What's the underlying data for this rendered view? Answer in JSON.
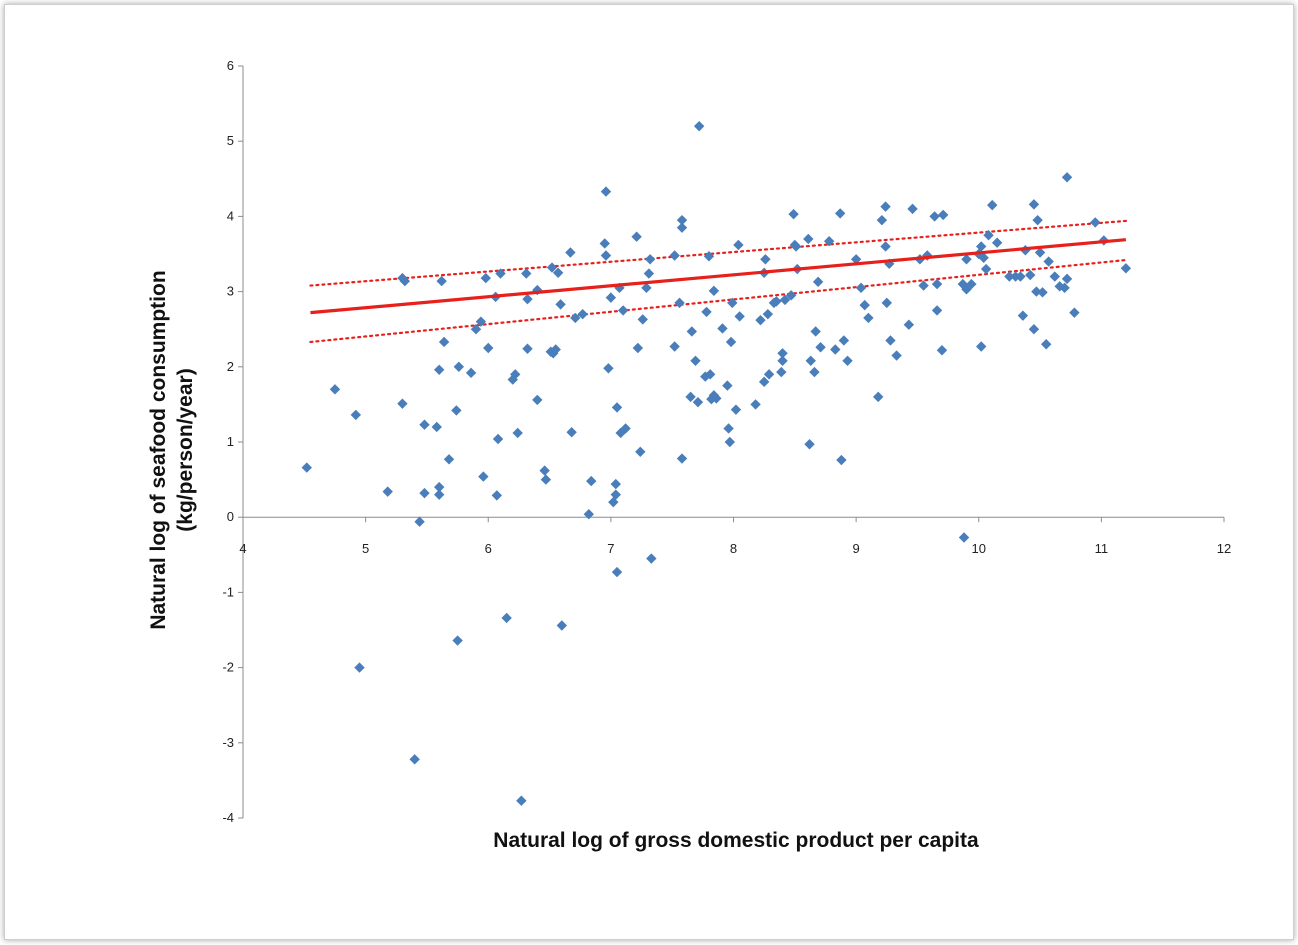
{
  "chart_data": {
    "type": "scatter",
    "xlabel": "Natural log of gross domestic product per capita",
    "ylabel_line1": "Natural log of  seafood consumption",
    "ylabel_line2": "(kg/person/year)",
    "xlim": [
      4,
      12
    ],
    "ylim": [
      -4,
      6
    ],
    "x_ticks": [
      4,
      5,
      6,
      7,
      8,
      9,
      10,
      11,
      12
    ],
    "y_ticks": [
      -4,
      -3,
      -2,
      -1,
      0,
      1,
      2,
      3,
      4,
      5,
      6
    ],
    "grid": false,
    "legend": "none",
    "colors": {
      "points": "#4a7ebb",
      "fit": "#e8201c",
      "ci": "#e8201c"
    },
    "fit_line": {
      "x": [
        4.55,
        11.2
      ],
      "y": [
        2.72,
        3.69
      ]
    },
    "ci_upper": {
      "x": [
        4.55,
        11.2
      ],
      "y": [
        3.08,
        3.94
      ]
    },
    "ci_lower": {
      "x": [
        4.55,
        11.2
      ],
      "y": [
        2.33,
        3.42
      ]
    },
    "points": [
      [
        4.52,
        0.66
      ],
      [
        4.75,
        1.7
      ],
      [
        4.92,
        1.36
      ],
      [
        4.95,
        -2.0
      ],
      [
        5.18,
        0.34
      ],
      [
        5.3,
        3.18
      ],
      [
        5.3,
        1.51
      ],
      [
        5.32,
        3.14
      ],
      [
        5.4,
        -3.22
      ],
      [
        5.44,
        -0.06
      ],
      [
        5.48,
        0.32
      ],
      [
        5.48,
        1.23
      ],
      [
        5.58,
        1.2
      ],
      [
        5.6,
        1.96
      ],
      [
        5.6,
        0.4
      ],
      [
        5.6,
        0.3
      ],
      [
        5.62,
        3.14
      ],
      [
        5.64,
        2.33
      ],
      [
        5.68,
        0.77
      ],
      [
        5.74,
        1.42
      ],
      [
        5.76,
        2.0
      ],
      [
        5.75,
        -1.64
      ],
      [
        5.86,
        1.92
      ],
      [
        5.9,
        2.5
      ],
      [
        5.94,
        2.6
      ],
      [
        5.96,
        0.54
      ],
      [
        5.98,
        3.18
      ],
      [
        6.0,
        2.25
      ],
      [
        6.06,
        2.93
      ],
      [
        6.07,
        0.29
      ],
      [
        6.08,
        1.04
      ],
      [
        6.1,
        3.24
      ],
      [
        6.15,
        -1.34
      ],
      [
        6.2,
        1.83
      ],
      [
        6.22,
        1.9
      ],
      [
        6.24,
        1.12
      ],
      [
        6.31,
        3.24
      ],
      [
        6.32,
        2.9
      ],
      [
        6.32,
        2.24
      ],
      [
        6.27,
        -3.77
      ],
      [
        6.4,
        3.02
      ],
      [
        6.4,
        1.56
      ],
      [
        6.47,
        0.5
      ],
      [
        6.46,
        0.62
      ],
      [
        6.51,
        2.2
      ],
      [
        6.52,
        3.32
      ],
      [
        6.53,
        2.18
      ],
      [
        6.55,
        2.23
      ],
      [
        6.57,
        3.25
      ],
      [
        6.59,
        2.83
      ],
      [
        6.6,
        -1.44
      ],
      [
        6.67,
        3.52
      ],
      [
        6.68,
        1.13
      ],
      [
        6.71,
        2.65
      ],
      [
        6.77,
        2.7
      ],
      [
        6.82,
        0.04
      ],
      [
        6.84,
        0.48
      ],
      [
        6.95,
        3.64
      ],
      [
        6.96,
        3.48
      ],
      [
        6.96,
        4.33
      ],
      [
        6.98,
        1.98
      ],
      [
        7.0,
        2.92
      ],
      [
        7.02,
        0.2
      ],
      [
        7.04,
        0.3
      ],
      [
        7.04,
        0.44
      ],
      [
        7.05,
        1.46
      ],
      [
        7.05,
        -0.73
      ],
      [
        7.07,
        3.05
      ],
      [
        7.08,
        1.12
      ],
      [
        7.1,
        2.75
      ],
      [
        7.12,
        1.18
      ],
      [
        7.21,
        3.73
      ],
      [
        7.22,
        2.25
      ],
      [
        7.24,
        0.87
      ],
      [
        7.26,
        2.63
      ],
      [
        7.29,
        3.05
      ],
      [
        7.31,
        3.24
      ],
      [
        7.32,
        3.43
      ],
      [
        7.33,
        -0.55
      ],
      [
        7.52,
        2.27
      ],
      [
        7.52,
        3.48
      ],
      [
        7.56,
        2.85
      ],
      [
        7.58,
        3.95
      ],
      [
        7.58,
        3.85
      ],
      [
        7.58,
        0.78
      ],
      [
        7.65,
        1.6
      ],
      [
        7.66,
        2.47
      ],
      [
        7.69,
        2.08
      ],
      [
        7.71,
        1.53
      ],
      [
        7.72,
        5.2
      ],
      [
        7.77,
        1.87
      ],
      [
        7.78,
        2.73
      ],
      [
        7.8,
        3.47
      ],
      [
        7.81,
        1.9
      ],
      [
        7.82,
        1.57
      ],
      [
        7.84,
        1.62
      ],
      [
        7.84,
        3.01
      ],
      [
        7.86,
        1.58
      ],
      [
        7.91,
        2.51
      ],
      [
        7.95,
        1.75
      ],
      [
        7.96,
        1.18
      ],
      [
        7.97,
        1.0
      ],
      [
        7.98,
        2.33
      ],
      [
        7.99,
        2.85
      ],
      [
        8.02,
        1.43
      ],
      [
        8.04,
        3.62
      ],
      [
        8.05,
        2.67
      ],
      [
        8.18,
        1.5
      ],
      [
        8.22,
        2.62
      ],
      [
        8.25,
        1.8
      ],
      [
        8.25,
        3.25
      ],
      [
        8.26,
        3.43
      ],
      [
        8.28,
        2.7
      ],
      [
        8.29,
        1.9
      ],
      [
        8.33,
        2.85
      ],
      [
        8.35,
        2.87
      ],
      [
        8.39,
        1.93
      ],
      [
        8.4,
        2.08
      ],
      [
        8.4,
        2.18
      ],
      [
        8.42,
        2.89
      ],
      [
        8.47,
        2.95
      ],
      [
        8.49,
        4.03
      ],
      [
        8.5,
        3.62
      ],
      [
        8.51,
        3.6
      ],
      [
        8.52,
        3.3
      ],
      [
        8.61,
        3.7
      ],
      [
        8.62,
        0.97
      ],
      [
        8.63,
        2.08
      ],
      [
        8.66,
        1.93
      ],
      [
        8.67,
        2.47
      ],
      [
        8.69,
        3.13
      ],
      [
        8.71,
        2.26
      ],
      [
        8.78,
        3.67
      ],
      [
        8.83,
        2.23
      ],
      [
        8.87,
        4.04
      ],
      [
        8.88,
        0.76
      ],
      [
        8.9,
        2.35
      ],
      [
        8.93,
        2.08
      ],
      [
        9.0,
        3.43
      ],
      [
        9.04,
        3.05
      ],
      [
        9.07,
        2.82
      ],
      [
        9.1,
        2.65
      ],
      [
        9.18,
        1.6
      ],
      [
        9.21,
        3.95
      ],
      [
        9.24,
        4.13
      ],
      [
        9.24,
        3.6
      ],
      [
        9.25,
        2.85
      ],
      [
        9.27,
        3.37
      ],
      [
        9.28,
        2.35
      ],
      [
        9.33,
        2.15
      ],
      [
        9.43,
        2.56
      ],
      [
        9.46,
        4.1
      ],
      [
        9.52,
        3.43
      ],
      [
        9.55,
        3.08
      ],
      [
        9.58,
        3.48
      ],
      [
        9.64,
        4.0
      ],
      [
        9.66,
        3.1
      ],
      [
        9.66,
        2.75
      ],
      [
        9.7,
        2.22
      ],
      [
        9.71,
        4.02
      ],
      [
        9.87,
        3.1
      ],
      [
        9.88,
        -0.27
      ],
      [
        9.9,
        3.03
      ],
      [
        9.9,
        3.43
      ],
      [
        9.94,
        3.1
      ],
      [
        10.0,
        3.5
      ],
      [
        10.02,
        3.6
      ],
      [
        10.02,
        2.27
      ],
      [
        10.04,
        3.45
      ],
      [
        10.06,
        3.3
      ],
      [
        10.08,
        3.75
      ],
      [
        10.11,
        4.15
      ],
      [
        10.15,
        3.65
      ],
      [
        10.25,
        3.2
      ],
      [
        10.3,
        3.2
      ],
      [
        10.34,
        3.2
      ],
      [
        10.36,
        2.68
      ],
      [
        10.38,
        3.55
      ],
      [
        10.42,
        3.22
      ],
      [
        10.45,
        2.5
      ],
      [
        10.45,
        4.16
      ],
      [
        10.47,
        3.0
      ],
      [
        10.48,
        3.95
      ],
      [
        10.5,
        3.52
      ],
      [
        10.52,
        2.99
      ],
      [
        10.55,
        2.3
      ],
      [
        10.57,
        3.4
      ],
      [
        10.62,
        3.2
      ],
      [
        10.66,
        3.07
      ],
      [
        10.7,
        3.05
      ],
      [
        10.72,
        3.17
      ],
      [
        10.72,
        4.52
      ],
      [
        10.78,
        2.72
      ],
      [
        10.95,
        3.92
      ],
      [
        11.02,
        3.68
      ],
      [
        11.2,
        3.31
      ]
    ]
  }
}
